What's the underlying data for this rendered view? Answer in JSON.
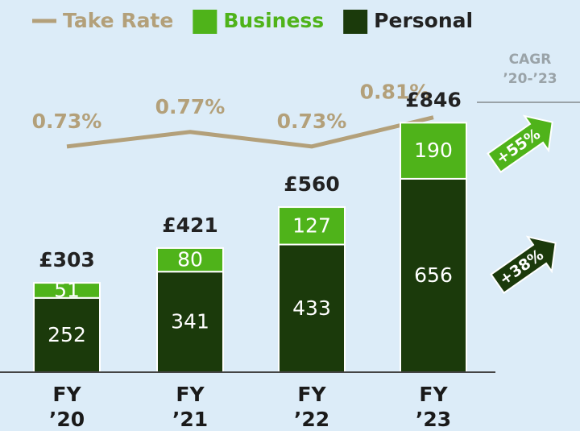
{
  "chart_data": {
    "type": "bar",
    "stacked": true,
    "categories": [
      "FY ’20",
      "FY ’21",
      "FY ’22",
      "FY ’23"
    ],
    "series": [
      {
        "name": "Personal",
        "color": "#1b3a0b",
        "values": [
          252,
          341,
          433,
          656
        ]
      },
      {
        "name": "Business",
        "color": "#4fb31a",
        "values": [
          51,
          80,
          127,
          190
        ]
      }
    ],
    "totals": {
      "values": [
        303,
        421,
        560,
        846
      ],
      "value_labels": [
        "£303",
        "£421",
        "£560",
        "£846"
      ]
    },
    "line": {
      "name": "Take Rate",
      "color": "#b3a07a",
      "axis": "y2",
      "values": [
        0.73,
        0.77,
        0.73,
        0.81
      ],
      "value_labels": [
        "0.73%",
        "0.77%",
        "0.73%",
        "0.81%"
      ]
    },
    "ylim": [
      0,
      1000
    ],
    "y2lim": [
      0.11,
      0.92
    ],
    "cagr_title": "CAGR ’20-’23",
    "annotations": [
      "+55%",
      "+38%"
    ]
  }
}
